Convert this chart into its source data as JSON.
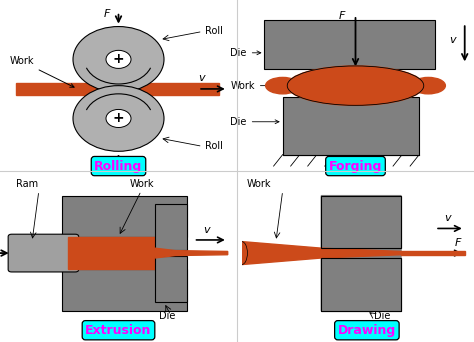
{
  "background_color": "#ffffff",
  "work_color": "#CC4A1A",
  "die_color": "#808080",
  "roll_color": "#B0B0B0",
  "ram_color": "#A0A0A0",
  "label_color": "#FF00FF",
  "label_bg": "#00FFFF",
  "labels": [
    "Rolling",
    "Forging",
    "Extrusion",
    "Drawing"
  ]
}
